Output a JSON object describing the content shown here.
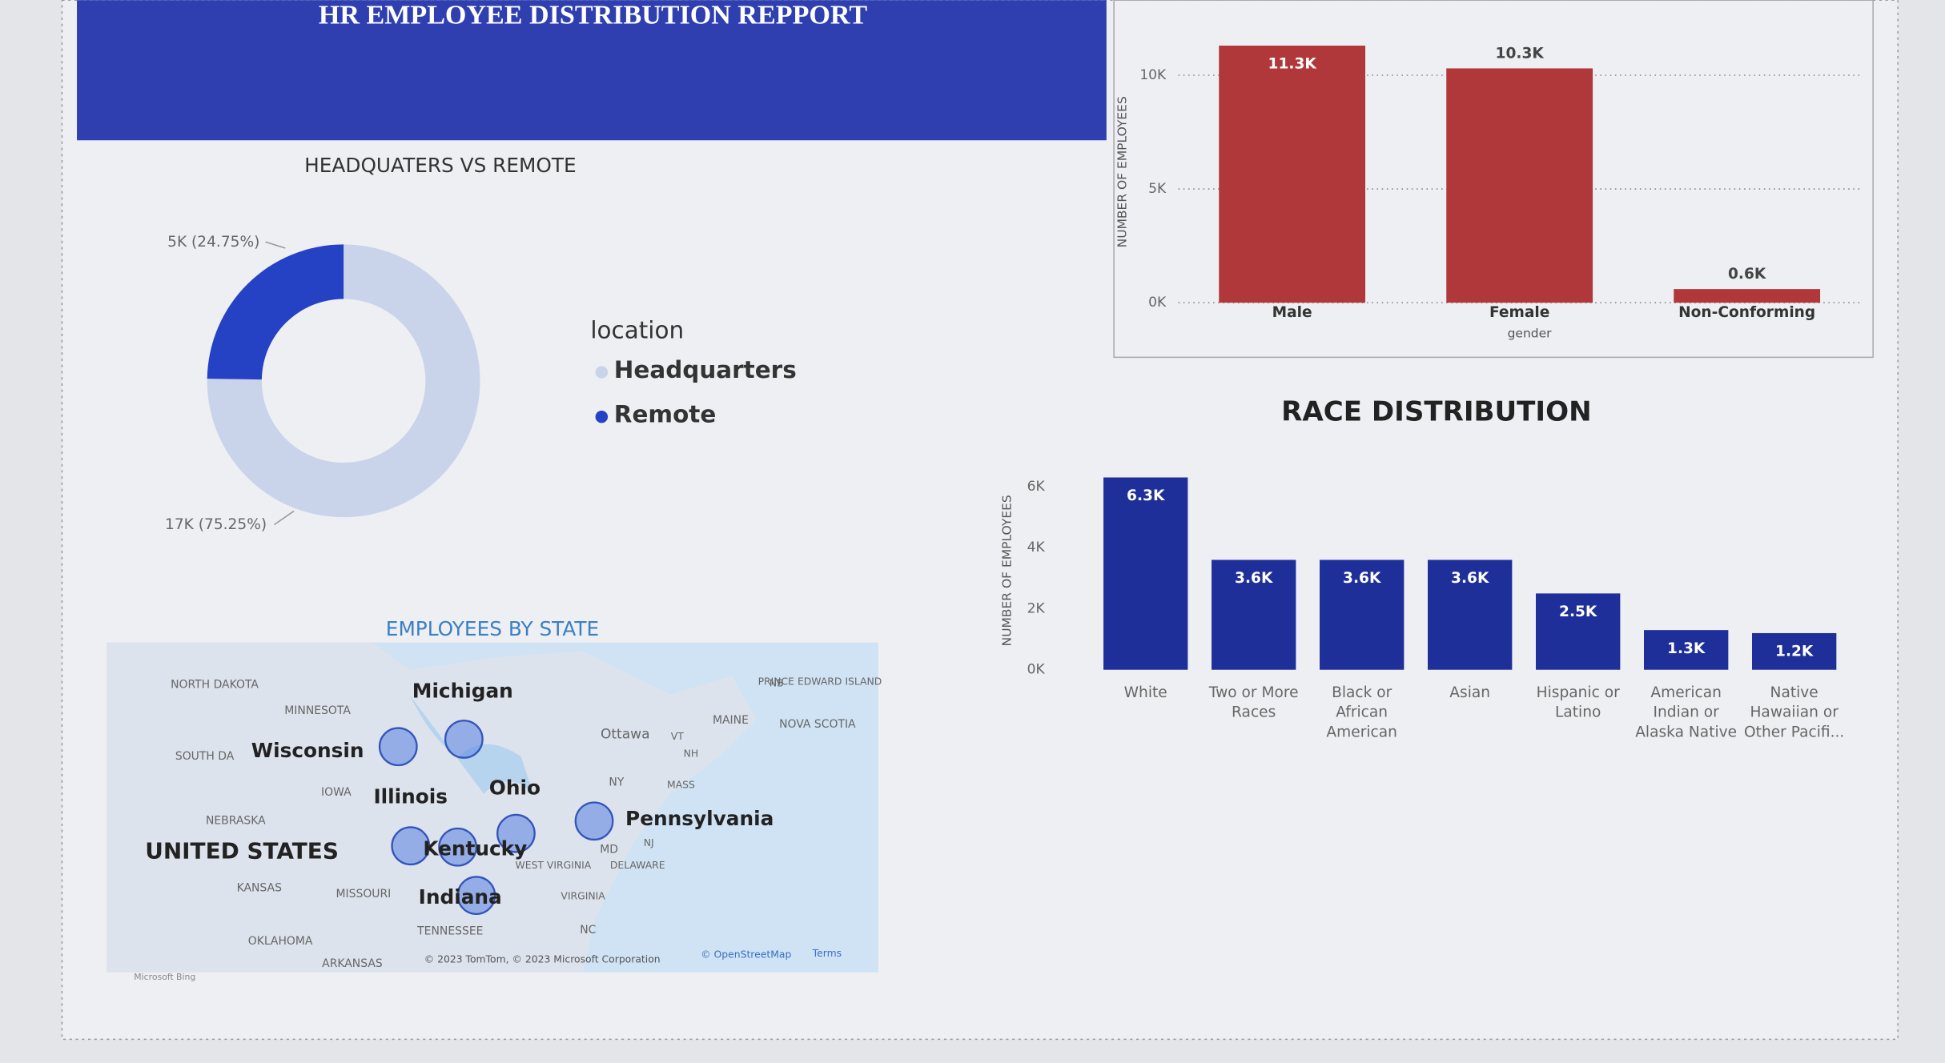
{
  "header": {
    "title": "HR EMPLOYEE DISTRIBUTION REPPORT"
  },
  "chart_data": [
    {
      "type": "donut",
      "title": "HEADQUATERS VS REMOTE",
      "legend_title": "location",
      "categories": [
        "Headquarters",
        "Remote"
      ],
      "values": [
        75.25,
        24.75
      ],
      "value_labels": [
        "17K (75.25%)",
        "5K (24.75%)"
      ],
      "colors": [
        "#c9d4ea",
        "#2541c4"
      ]
    },
    {
      "type": "bar",
      "y_label": "NUMBER OF EMPLOYEES",
      "x_label": "gender",
      "categories": [
        "Male",
        "Female",
        "Non-Conforming"
      ],
      "values": [
        11300,
        10300,
        600
      ],
      "value_labels": [
        "11.3K",
        "10.3K",
        "0.6K"
      ],
      "color": "#b0373a",
      "ylim": [
        0,
        11500
      ],
      "yticks": [
        {
          "value": 0,
          "label": "0K"
        },
        {
          "value": 5000,
          "label": "5K"
        },
        {
          "value": 10000,
          "label": "10K"
        }
      ],
      "grid": true
    },
    {
      "type": "bar",
      "title": "RACE DISTRIBUTION",
      "y_label": "NUMBER OF EMPLOYEES",
      "categories": [
        "White",
        "Two or More Races",
        "Black or African American",
        "Asian",
        "Hispanic or Latino",
        "American Indian or Alaska Native",
        "Native Hawaiian or Other Pacifi..."
      ],
      "values": [
        6300,
        3600,
        3600,
        3600,
        2500,
        1300,
        1200
      ],
      "value_labels": [
        "6.3K",
        "3.6K",
        "3.6K",
        "3.6K",
        "2.5K",
        "1.3K",
        "1.2K"
      ],
      "color": "#1f2f9a",
      "ylim": [
        0,
        6500
      ],
      "yticks": [
        {
          "value": 0,
          "label": "0K"
        },
        {
          "value": 2000,
          "label": "2K"
        },
        {
          "value": 4000,
          "label": "4K"
        },
        {
          "value": 6000,
          "label": "6K"
        }
      ],
      "grid": false
    }
  ],
  "map": {
    "title": "EMPLOYEES BY STATE",
    "labels": [
      "NORTH DAKOTA",
      "MINNESOTA",
      "Michigan",
      "SOUTH DA",
      "Wisconsin",
      "IOWA",
      "Illinois",
      "Ohio",
      "NEBRASKA",
      "UNITED STATES",
      "Kentucky",
      "KANSAS",
      "MISSOURI",
      "Indiana",
      "OKLAHOMA",
      "ARKANSAS",
      "TENNESSEE",
      "Pennsylvania",
      "Ottawa",
      "MAINE",
      "NOVA SCOTIA",
      "PRINCE EDWARD ISLAND",
      "NB",
      "VT",
      "NH",
      "NY",
      "MASS",
      "MD",
      "NJ",
      "DELAWARE",
      "WEST VIRGINIA",
      "VIRGINIA",
      "NC"
    ],
    "attribution": "© 2023 TomTom, © 2023 Microsoft Corporation",
    "osm": "© OpenStreetMap",
    "terms": "Terms",
    "brand": "Microsoft Bing"
  }
}
